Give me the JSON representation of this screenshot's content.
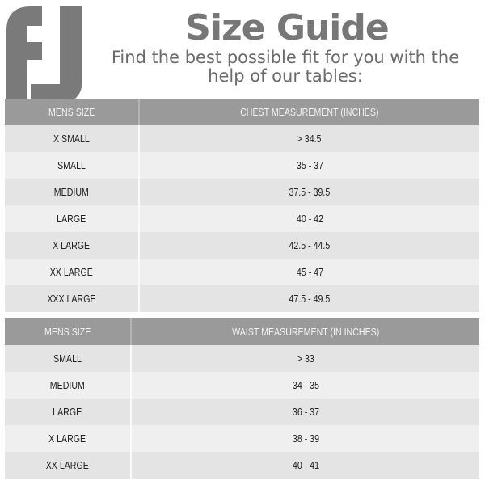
{
  "logo": {
    "text": "FJ",
    "color": "#7a7a7a"
  },
  "header": {
    "title": "Size Guide",
    "subtitle_line1": "Find the best possible fit for you with the",
    "subtitle_line2": "help of our tables:"
  },
  "chest_table": {
    "headers": [
      "MENS SIZE",
      "CHEST MEASUREMENT (INCHES)"
    ],
    "rows": [
      [
        "X SMALL",
        "> 34.5"
      ],
      [
        "SMALL",
        "35 - 37"
      ],
      [
        "MEDIUM",
        "37.5 - 39.5"
      ],
      [
        "LARGE",
        "40 - 42"
      ],
      [
        "X LARGE",
        "42.5 - 44.5"
      ],
      [
        "XX LARGE",
        "45 - 47"
      ],
      [
        "XXX LARGE",
        "47.5 - 49.5"
      ]
    ]
  },
  "waist_table": {
    "headers": [
      "MENS SIZE",
      "WAIST MEASUREMENT (IN INCHES)"
    ],
    "rows": [
      [
        "SMALL",
        "> 33"
      ],
      [
        "MEDIUM",
        "34 - 35"
      ],
      [
        "LARGE",
        "36 - 37"
      ],
      [
        "X LARGE",
        "38 - 39"
      ],
      [
        "XX LARGE",
        "40 - 41"
      ]
    ]
  },
  "colors": {
    "header_bg": "#9a9a9a",
    "row_dark": "#e4e4e4",
    "row_light": "#efefef",
    "title": "#777777"
  }
}
